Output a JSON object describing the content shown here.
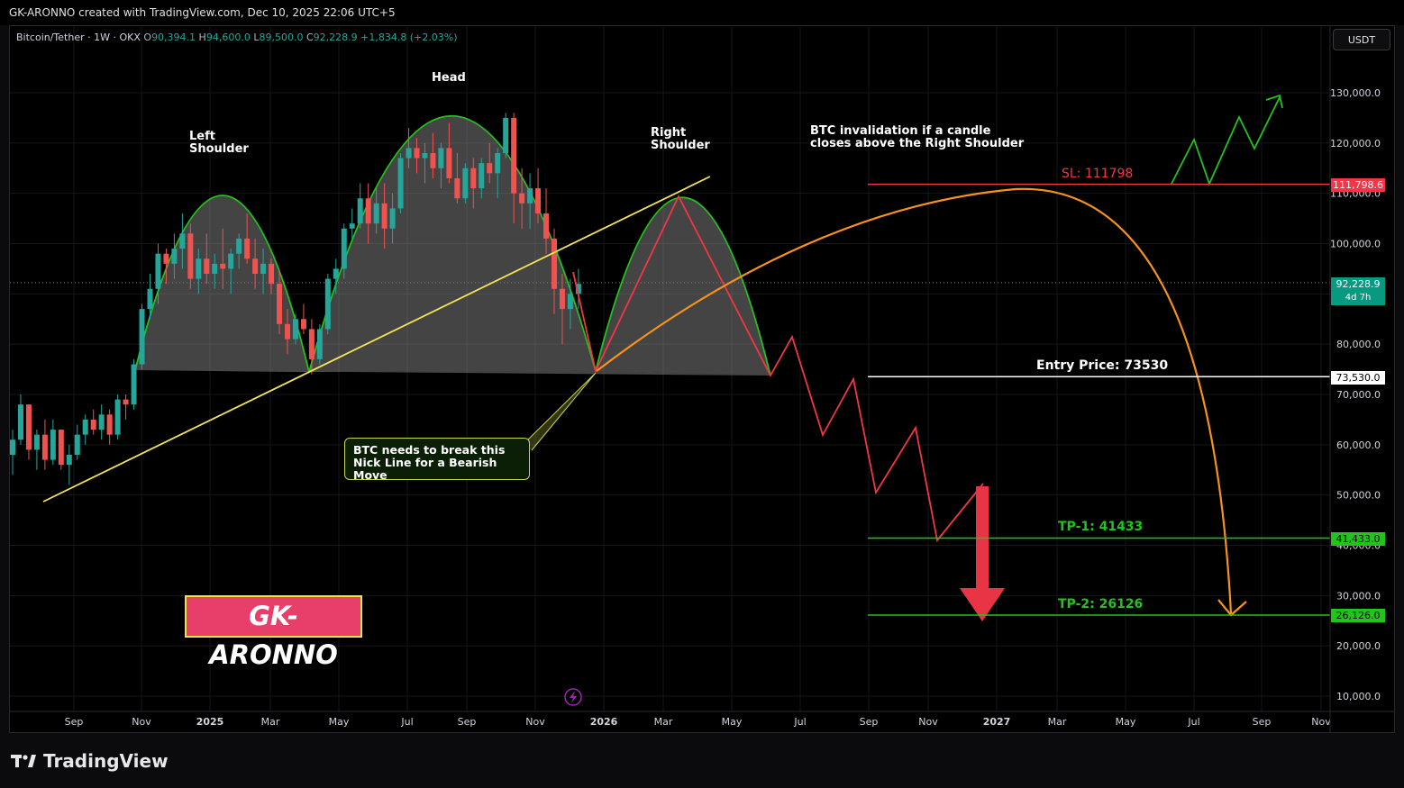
{
  "header": {
    "attribution": "GK-ARONNO created with TradingView.com, Dec 10, 2025 22:06 UTC+5"
  },
  "symbol": {
    "name": "Bitcoin/Tether · 1W · OKX",
    "open_label": "O",
    "open": "90,394.1",
    "high_label": "H",
    "high": "94,600.0",
    "low_label": "L",
    "low": "89,500.0",
    "close_label": "C",
    "close": "92,228.9",
    "change": "+1,834.8 (+2.03%)"
  },
  "currency_button": "USDT",
  "annotations": {
    "left_shoulder_1": "Left",
    "left_shoulder_2": "Shoulder",
    "head": "Head",
    "right_shoulder_1": "Right",
    "right_shoulder_2": "Shoulder",
    "invalidation_1": "BTC invalidation if a candle",
    "invalidation_2": "closes above the Right Shoulder",
    "note_1": "BTC needs to break this",
    "note_2": "Nick Line for a Bearish Move",
    "sl": "SL: 111798",
    "entry": "Entry Price: 73530",
    "tp1": "TP-1: 41433",
    "tp2": "TP-2: 26126",
    "brand": "GK-ARONNO"
  },
  "price_tags": {
    "sl": "111,798.6",
    "current": "92,228.9",
    "countdown": "4d 7h",
    "entry": "73,530.0",
    "tp1": "41,433.0",
    "tp2": "26,126.0"
  },
  "footer": {
    "logo_text": "TradingView"
  },
  "colors": {
    "up": "#26a69a",
    "down": "#ef5350",
    "sl": "#f23645",
    "tp": "#22c31a",
    "neckline": "#f3e35a",
    "projection": "#f7931a",
    "brand_bg": "#e83e6a"
  },
  "chart_data": {
    "type": "candlestick",
    "timeframe": "1W",
    "y_axis": {
      "ticks": [
        "10,000.0",
        "20,000.0",
        "30,000.0",
        "40,000.0",
        "50,000.0",
        "60,000.0",
        "70,000.0",
        "80,000.0",
        "90,000.0",
        "100,000.0",
        "110,000.0",
        "120,000.0",
        "130,000.0"
      ],
      "ylim": [
        7000,
        140000
      ]
    },
    "x_axis": {
      "ticks": [
        "Sep",
        "Nov",
        "2025",
        "Mar",
        "May",
        "Jul",
        "Sep",
        "Nov",
        "2026",
        "Mar",
        "May",
        "Jul",
        "Sep",
        "Nov",
        "2027",
        "Mar",
        "May",
        "Jul",
        "Sep",
        "Nov"
      ]
    },
    "levels": {
      "sl": 111798.6,
      "entry": 73530,
      "tp1": 41433,
      "tp2": 26126,
      "current": 92228.9
    },
    "ohlc": [
      [
        58000,
        63000,
        54000,
        61000
      ],
      [
        61000,
        70000,
        60000,
        68000
      ],
      [
        68000,
        68000,
        57000,
        59000
      ],
      [
        59000,
        63000,
        55000,
        62000
      ],
      [
        62000,
        65000,
        55000,
        57000
      ],
      [
        57000,
        65000,
        56000,
        63000
      ],
      [
        63000,
        63000,
        55000,
        56000
      ],
      [
        56000,
        60000,
        52000,
        58000
      ],
      [
        58000,
        64000,
        57000,
        62000
      ],
      [
        62000,
        66000,
        60000,
        65000
      ],
      [
        65000,
        67000,
        62000,
        63000
      ],
      [
        63000,
        68000,
        61000,
        66000
      ],
      [
        66000,
        67000,
        60000,
        62000
      ],
      [
        62000,
        70000,
        61000,
        69000
      ],
      [
        69000,
        70000,
        65000,
        68000
      ],
      [
        68000,
        77000,
        67000,
        76000
      ],
      [
        76000,
        88000,
        75000,
        87000
      ],
      [
        87000,
        94000,
        85000,
        91000
      ],
      [
        91000,
        100000,
        88000,
        98000
      ],
      [
        98000,
        99000,
        92000,
        96000
      ],
      [
        96000,
        102000,
        93000,
        99000
      ],
      [
        99000,
        106000,
        95000,
        102000
      ],
      [
        102000,
        104000,
        91000,
        93000
      ],
      [
        93000,
        99000,
        90000,
        97000
      ],
      [
        97000,
        102000,
        92000,
        94000
      ],
      [
        94000,
        98000,
        91000,
        96000
      ],
      [
        96000,
        103000,
        91000,
        95000
      ],
      [
        95000,
        99000,
        90000,
        98000
      ],
      [
        98000,
        102000,
        95000,
        101000
      ],
      [
        101000,
        106000,
        96000,
        97000
      ],
      [
        97000,
        101000,
        91000,
        94000
      ],
      [
        94000,
        99000,
        90000,
        96000
      ],
      [
        96000,
        97000,
        90000,
        92000
      ],
      [
        92000,
        95000,
        82000,
        84000
      ],
      [
        84000,
        87000,
        78000,
        81000
      ],
      [
        81000,
        86000,
        80000,
        85000
      ],
      [
        85000,
        88000,
        82000,
        83000
      ],
      [
        83000,
        85000,
        74000,
        77000
      ],
      [
        77000,
        84000,
        76000,
        83000
      ],
      [
        83000,
        94000,
        82000,
        93000
      ],
      [
        93000,
        97000,
        90000,
        95000
      ],
      [
        95000,
        104000,
        93000,
        103000
      ],
      [
        103000,
        107000,
        101000,
        104000
      ],
      [
        104000,
        112000,
        103000,
        109000
      ],
      [
        109000,
        112000,
        100000,
        104000
      ],
      [
        104000,
        111000,
        102000,
        108000
      ],
      [
        108000,
        112000,
        99000,
        103000
      ],
      [
        103000,
        110000,
        100000,
        107000
      ],
      [
        107000,
        118000,
        106000,
        117000
      ],
      [
        117000,
        123000,
        115000,
        119000
      ],
      [
        119000,
        121000,
        114000,
        117000
      ],
      [
        117000,
        120000,
        112000,
        118000
      ],
      [
        118000,
        122000,
        113000,
        115000
      ],
      [
        115000,
        120000,
        111000,
        119000
      ],
      [
        119000,
        124000,
        112000,
        113000
      ],
      [
        113000,
        118000,
        108000,
        109000
      ],
      [
        109000,
        116000,
        108000,
        115000
      ],
      [
        115000,
        117000,
        107000,
        111000
      ],
      [
        111000,
        117000,
        109000,
        116000
      ],
      [
        116000,
        120000,
        112000,
        114000
      ],
      [
        114000,
        119000,
        109000,
        118000
      ],
      [
        118000,
        126000,
        117000,
        125000
      ],
      [
        125000,
        126000,
        104000,
        110000
      ],
      [
        110000,
        115000,
        103000,
        108000
      ],
      [
        108000,
        114000,
        103000,
        111000
      ],
      [
        111000,
        115000,
        104000,
        106000
      ],
      [
        106000,
        111000,
        98000,
        101000
      ],
      [
        101000,
        103000,
        86000,
        91000
      ],
      [
        91000,
        94000,
        80000,
        87000
      ],
      [
        87000,
        93000,
        83000,
        90000
      ],
      [
        90000,
        95000,
        87000,
        92000
      ]
    ]
  }
}
